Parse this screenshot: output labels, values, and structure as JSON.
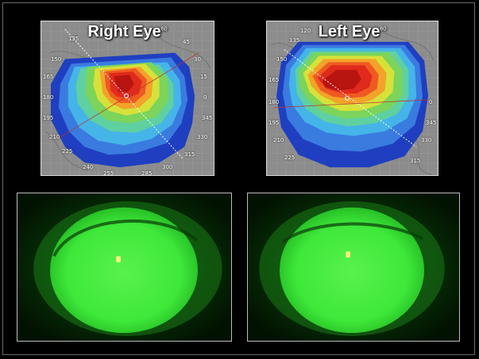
{
  "panels": {
    "right": {
      "title": "Right Eye",
      "superscript": "60",
      "degrees": [
        "135",
        "45",
        "150",
        "30",
        "165",
        "15",
        "180",
        "0",
        "195",
        "345",
        "210",
        "330",
        "225",
        "315",
        "240",
        "300",
        "255",
        "285"
      ]
    },
    "left": {
      "title": "Left Eye",
      "superscript": "60",
      "degrees": [
        "120",
        "135",
        "150",
        "165",
        "180",
        "0",
        "195",
        "345",
        "210",
        "330",
        "225",
        "315"
      ]
    }
  },
  "colors": {
    "background": "#000000",
    "map_gray": "#8f8f8f",
    "fluorescein_green": "#3fe83a"
  }
}
